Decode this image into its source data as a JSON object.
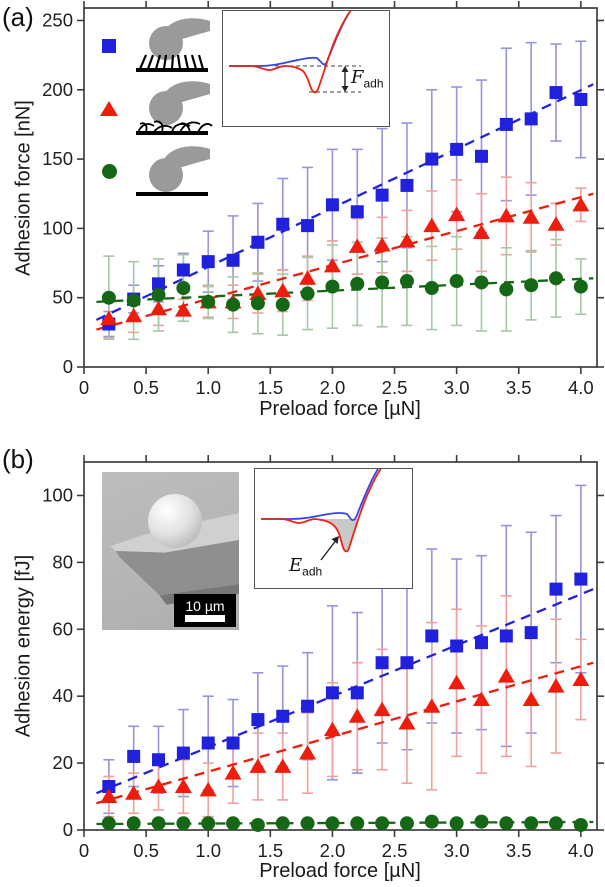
{
  "figure": {
    "panel_a_label": "(a)",
    "panel_b_label": "(b)",
    "inset_a": {
      "label_main": "F",
      "label_sub": "adh",
      "description": "force-distance-curve"
    },
    "inset_b": {
      "label_main": "E",
      "label_sub": "adh",
      "description": "force-distance-curve-shaded-energy"
    },
    "sem_scalebar_text": "10 µm",
    "legend": [
      {
        "marker": "blue-square",
        "surface": "sphere-on-straight-fiber-array"
      },
      {
        "marker": "red-triangle",
        "surface": "sphere-on-tangled-fibers"
      },
      {
        "marker": "green-circle",
        "surface": "sphere-on-flat-substrate"
      }
    ],
    "colors": {
      "blue": "#2121dd",
      "blue_err": "#9595dd",
      "red": "#ee1c0c",
      "red_err": "#f0a19b",
      "green": "#156615",
      "green_err": "#a6c8a6",
      "axis": "#3d3d3d",
      "tick_text": "#1f1f1f"
    }
  },
  "chart_data": [
    {
      "id": "a",
      "type": "scatter",
      "title": "",
      "xlabel": "Preload force [µN]",
      "ylabel": "Adhesion force [nN]",
      "xlim": [
        0,
        4.13
      ],
      "ylim": [
        0,
        259
      ],
      "grid": false,
      "xticks": [
        0,
        0.5,
        1.0,
        1.5,
        2.0,
        2.5,
        3.0,
        3.5,
        4.0
      ],
      "xtick_labels": [
        "0",
        "0.5",
        "1.0",
        "1.5",
        "2.0",
        "2.5",
        "3.0",
        "3.5",
        "4.0"
      ],
      "yticks": [
        0,
        50,
        100,
        150,
        200,
        250
      ],
      "ytick_labels": [
        "0",
        "50",
        "100",
        "150",
        "200",
        "250"
      ],
      "x": [
        0.2,
        0.4,
        0.6,
        0.8,
        1.0,
        1.2,
        1.4,
        1.6,
        1.8,
        2.0,
        2.2,
        2.4,
        2.6,
        2.8,
        3.0,
        3.2,
        3.4,
        3.6,
        3.8,
        4.0
      ],
      "series": [
        {
          "name": "fiber-array-blue-square",
          "marker": "square",
          "color": "#2121dd",
          "err_color": "#9595dd",
          "values": [
            31,
            49,
            60,
            70,
            76,
            77,
            90,
            103,
            102,
            117,
            112,
            124,
            131,
            150,
            157,
            152,
            175,
            179,
            198,
            193
          ],
          "errors": [
            9,
            10,
            13,
            12,
            22,
            32,
            28,
            33,
            42,
            40,
            45,
            48,
            45,
            50,
            45,
            55,
            55,
            55,
            35,
            42
          ],
          "trend": {
            "x": [
              0.1,
              4.1
            ],
            "y": [
              34,
              204
            ]
          }
        },
        {
          "name": "tangled-fibers-red-triangle",
          "marker": "triangle",
          "color": "#ee1c0c",
          "err_color": "#f0a19b",
          "values": [
            35,
            37,
            42,
            41,
            47,
            47,
            53,
            55,
            64,
            73,
            87,
            88,
            91,
            102,
            110,
            97,
            109,
            108,
            103,
            117
          ],
          "errors": [
            14,
            12,
            12,
            8,
            11,
            12,
            14,
            15,
            16,
            18,
            20,
            20,
            22,
            25,
            25,
            28,
            28,
            25,
            15,
            12
          ],
          "trend": {
            "x": [
              0.1,
              4.1
            ],
            "y": [
              27,
              125
            ]
          }
        },
        {
          "name": "flat-substrate-green-circle",
          "marker": "circle",
          "color": "#156615",
          "err_color": "#a6c8a6",
          "values": [
            50,
            48,
            52,
            57,
            47,
            45,
            46,
            45,
            53,
            58,
            60,
            61,
            62,
            57,
            62,
            61,
            56,
            59,
            64,
            58
          ],
          "errors": [
            30,
            28,
            26,
            24,
            12,
            20,
            22,
            22,
            26,
            30,
            30,
            32,
            32,
            30,
            32,
            35,
            30,
            25,
            28,
            20
          ],
          "trend": {
            "x": [
              0.1,
              4.1
            ],
            "y": [
              47,
              64
            ]
          }
        }
      ]
    },
    {
      "id": "b",
      "type": "scatter",
      "title": "",
      "xlabel": "Preload force [µN]",
      "ylabel": "Adhesion energy [fJ]",
      "xlim": [
        0,
        4.13
      ],
      "ylim": [
        0,
        110
      ],
      "grid": false,
      "xticks": [
        0,
        0.5,
        1.0,
        1.5,
        2.0,
        2.5,
        3.0,
        3.5,
        4.0
      ],
      "xtick_labels": [
        "0",
        "0.5",
        "1.0",
        "1.5",
        "2.0",
        "2.5",
        "3.0",
        "3.5",
        "4.0"
      ],
      "yticks": [
        0,
        20,
        40,
        60,
        80,
        100
      ],
      "ytick_labels": [
        "0",
        "20",
        "40",
        "60",
        "80",
        "100"
      ],
      "x": [
        0.2,
        0.4,
        0.6,
        0.8,
        1.0,
        1.2,
        1.4,
        1.6,
        1.8,
        2.0,
        2.2,
        2.4,
        2.6,
        2.8,
        3.0,
        3.2,
        3.4,
        3.6,
        3.8,
        4.0
      ],
      "series": [
        {
          "name": "fiber-array-blue-square",
          "marker": "square",
          "color": "#2121dd",
          "err_color": "#9595dd",
          "values": [
            13,
            22,
            21,
            23,
            26,
            26,
            33,
            34,
            37,
            41,
            41,
            50,
            50,
            58,
            55,
            56,
            58,
            59,
            72,
            75
          ],
          "errors": [
            8,
            9,
            10,
            13,
            14,
            13,
            14,
            15,
            16,
            26,
            24,
            24,
            26,
            26,
            26,
            26,
            33,
            30,
            22,
            28
          ],
          "trend": {
            "x": [
              0.1,
              4.1
            ],
            "y": [
              11,
              72
            ]
          }
        },
        {
          "name": "tangled-fibers-red-triangle",
          "marker": "triangle",
          "color": "#ee1c0c",
          "err_color": "#f0a19b",
          "values": [
            10,
            11,
            13,
            13,
            12,
            17,
            19,
            19,
            23,
            30,
            34,
            36,
            32,
            37,
            44,
            39,
            46,
            39,
            43,
            45
          ],
          "errors": [
            6,
            6,
            7,
            8,
            8,
            9,
            10,
            10,
            12,
            14,
            16,
            18,
            18,
            25,
            22,
            22,
            24,
            20,
            20,
            12
          ],
          "trend": {
            "x": [
              0.1,
              4.1
            ],
            "y": [
              8,
              50
            ]
          }
        },
        {
          "name": "flat-substrate-green-circle",
          "marker": "circle",
          "color": "#156615",
          "err_color": "#a6c8a6",
          "values": [
            2,
            2,
            2,
            2,
            2,
            2,
            1.5,
            2,
            2,
            2,
            2,
            2,
            2,
            2.5,
            2,
            2.5,
            2,
            2,
            2,
            1.5
          ],
          "errors": [
            1.2,
            1.2,
            1.2,
            1.2,
            1.2,
            1.2,
            1.2,
            1.2,
            1.2,
            1.2,
            1.2,
            1.2,
            1.2,
            1.2,
            1.2,
            1.2,
            1.2,
            1.2,
            1.2,
            1.2
          ],
          "trend": {
            "x": [
              0.1,
              4.1
            ],
            "y": [
              1.8,
              2.4
            ]
          }
        }
      ]
    }
  ]
}
